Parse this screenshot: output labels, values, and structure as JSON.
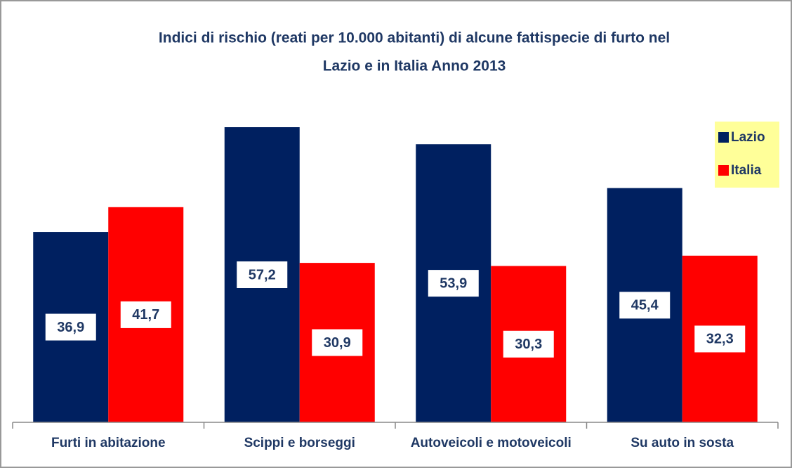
{
  "chart_data": {
    "type": "bar",
    "title": [
      "Indici di rischio (reati per 10.000 abitanti) di alcune fattispecie di furto nel",
      "Lazio e in Italia Anno 2013"
    ],
    "categories": [
      "Furti in abitazione",
      "Scippi e borseggi",
      "Autoveicoli e motoveicoli",
      "Su auto in sosta"
    ],
    "series": [
      {
        "name": "Lazio",
        "color": "#002060",
        "values": [
          36.9,
          57.2,
          53.9,
          45.4
        ],
        "value_labels": [
          "36,9",
          "57,2",
          "53,9",
          "45,4"
        ]
      },
      {
        "name": "Italia",
        "color": "#ff0000",
        "values": [
          41.7,
          30.9,
          30.3,
          32.3
        ],
        "value_labels": [
          "41,7",
          "30,9",
          "30,3",
          "32,3"
        ]
      }
    ],
    "legend": "right"
  }
}
